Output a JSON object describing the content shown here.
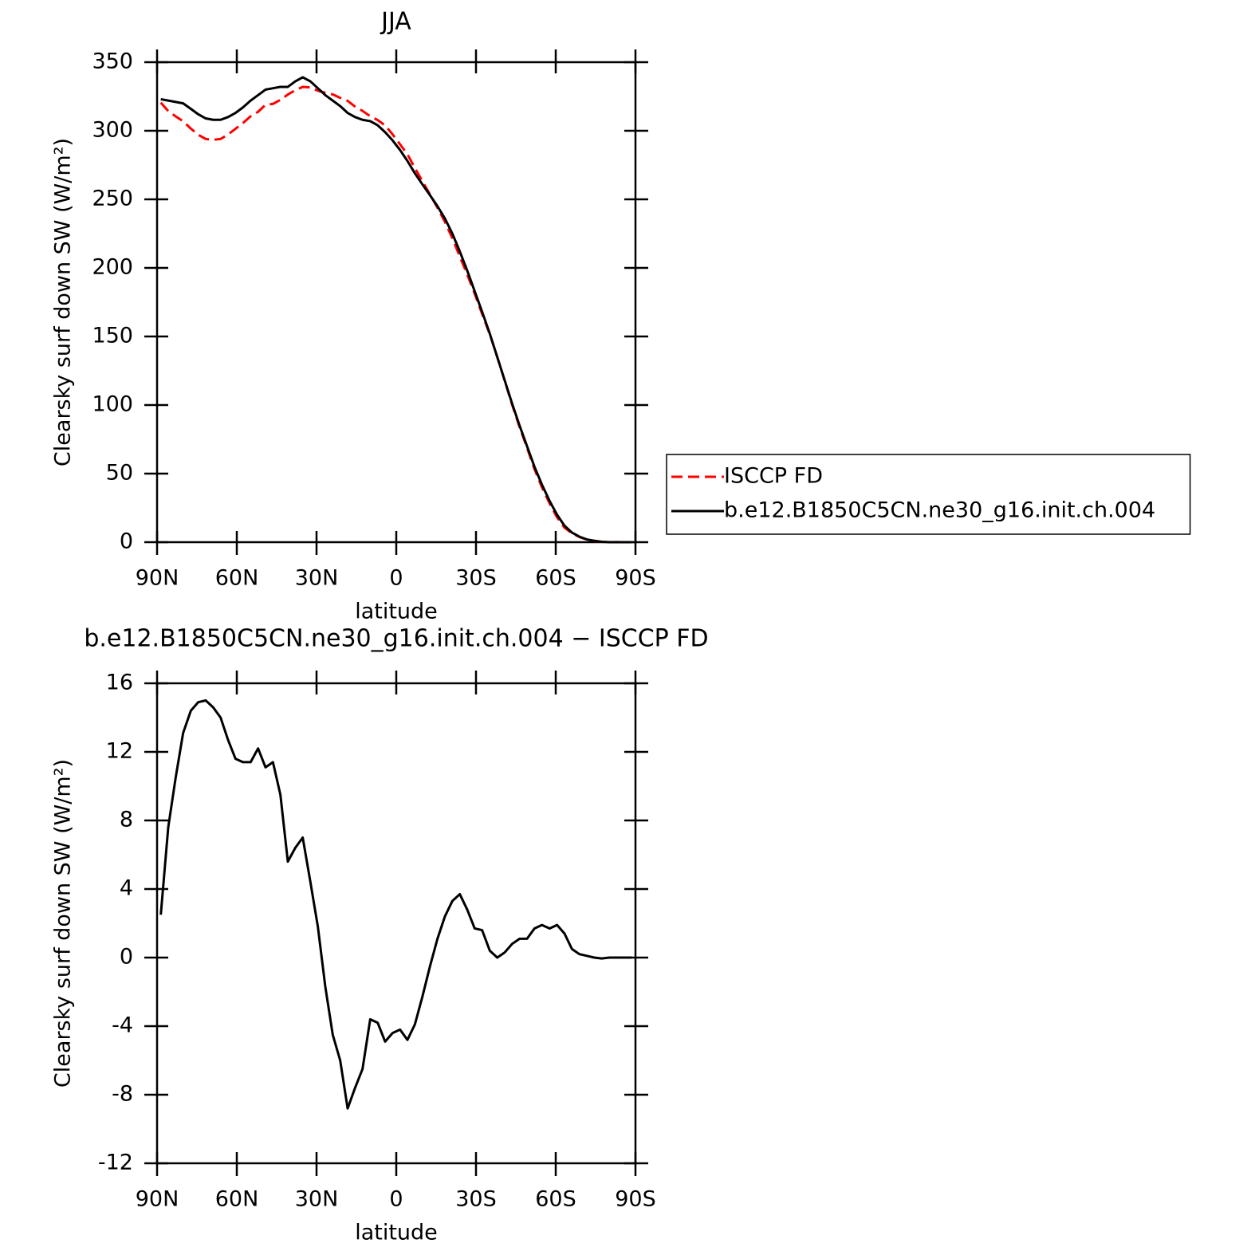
{
  "chart_data": [
    {
      "type": "line",
      "title": "JJA",
      "xlabel": "latitude",
      "ylabel": "Clearsky surf down SW (W/m²)",
      "x": [
        88.6,
        85.8,
        83.0,
        80.2,
        77.3,
        74.5,
        71.7,
        68.9,
        66.1,
        63.3,
        60.5,
        57.7,
        54.8,
        52.0,
        49.2,
        46.4,
        43.6,
        40.8,
        38.0,
        35.2,
        32.3,
        29.5,
        26.7,
        23.9,
        21.1,
        18.3,
        15.5,
        12.7,
        9.8,
        7.0,
        4.2,
        1.4,
        -1.4,
        -4.2,
        -7.0,
        -9.8,
        -12.7,
        -15.5,
        -18.3,
        -21.1,
        -23.9,
        -26.7,
        -29.5,
        -32.3,
        -35.2,
        -38.0,
        -40.8,
        -43.6,
        -46.4,
        -49.2,
        -52.0,
        -54.8,
        -57.7,
        -60.5,
        -63.3,
        -66.1,
        -68.9,
        -71.7,
        -74.5,
        -77.3,
        -80.2,
        -83.0,
        -85.8,
        -88.6
      ],
      "series": [
        {
          "name": "ISCCP FD",
          "color": "#ff0000",
          "style": "dashed",
          "values": [
            320.5,
            314.4,
            310.5,
            306.9,
            301.6,
            297.1,
            294.0,
            293.4,
            294.0,
            297.3,
            301.4,
            305.6,
            310.6,
            313.8,
            318.9,
            319.6,
            322.5,
            326.4,
            329.6,
            332.0,
            331.6,
            329.2,
            327.7,
            326.5,
            324.0,
            321.8,
            317.6,
            314.5,
            310.6,
            307.8,
            303.9,
            297.4,
            290.2,
            282.8,
            272.9,
            263.3,
            253.5,
            243.9,
            233.6,
            221.7,
            208.3,
            195.2,
            181.3,
            166.4,
            151.6,
            135.0,
            117.7,
            100.2,
            83.9,
            68.9,
            53.3,
            40.1,
            28.3,
            18.1,
            10.6,
            6.5,
            3.8,
            1.9,
            0.9,
            0.3,
            0,
            0.05,
            0,
            0
          ]
        },
        {
          "name": "b.e12.B1850C5CN.ne30_g16.init.ch.004",
          "color": "#000000",
          "style": "solid",
          "values": [
            323,
            322,
            321,
            320,
            316,
            312,
            309,
            308,
            308,
            310,
            313,
            317,
            322,
            326,
            330,
            331,
            332,
            332,
            336,
            339,
            336,
            331,
            326,
            322,
            318,
            313,
            310,
            308,
            307,
            304,
            299,
            293,
            286,
            278,
            269,
            261,
            253,
            245,
            236,
            225,
            212,
            198,
            183,
            168,
            152,
            135,
            118,
            101,
            85,
            70,
            55,
            42,
            30,
            20,
            12,
            7,
            4,
            2,
            1,
            0.3,
            0,
            0,
            0,
            0
          ]
        }
      ],
      "xlim": [
        90,
        -90
      ],
      "xticks": [
        {
          "value": 90,
          "label": "90N"
        },
        {
          "value": 60,
          "label": "60N"
        },
        {
          "value": 30,
          "label": "30N"
        },
        0,
        {
          "value": -30,
          "label": "30S"
        },
        {
          "value": -60,
          "label": "60S"
        },
        {
          "value": -90,
          "label": "90S"
        }
      ],
      "ylim": [
        0,
        350
      ],
      "yticks": [
        0,
        50,
        100,
        150,
        200,
        250,
        300,
        350
      ],
      "legend": "right"
    },
    {
      "type": "line",
      "title": "b.e12.B1850C5CN.ne30_g16.init.ch.004 − ISCCP FD",
      "xlabel": "latitude",
      "ylabel": "Clearsky surf down SW (W/m²)",
      "x": [
        88.6,
        85.8,
        83.0,
        80.2,
        77.3,
        74.5,
        71.7,
        68.9,
        66.1,
        63.3,
        60.5,
        57.7,
        54.8,
        52.0,
        49.2,
        46.4,
        43.6,
        40.8,
        38.0,
        35.2,
        32.3,
        29.5,
        26.7,
        23.9,
        21.1,
        18.3,
        15.5,
        12.7,
        9.8,
        7.0,
        4.2,
        1.4,
        -1.4,
        -4.2,
        -7.0,
        -9.8,
        -12.7,
        -15.5,
        -18.3,
        -21.1,
        -23.9,
        -26.7,
        -29.5,
        -32.3,
        -35.2,
        -38.0,
        -40.8,
        -43.6,
        -46.4,
        -49.2,
        -52.0,
        -54.8,
        -57.7,
        -60.5,
        -63.3,
        -66.1,
        -68.9,
        -71.7,
        -74.5,
        -77.3,
        -80.2,
        -83.0,
        -85.8,
        -88.6
      ],
      "series": [
        {
          "color": "#000000",
          "style": "solid",
          "values": [
            2.5,
            7.6,
            10.5,
            13.1,
            14.4,
            14.9,
            15.0,
            14.6,
            14.0,
            12.7,
            11.6,
            11.4,
            11.4,
            12.2,
            11.1,
            11.4,
            9.5,
            5.6,
            6.4,
            7.0,
            4.4,
            1.8,
            -1.7,
            -4.5,
            -6.0,
            -8.8,
            -7.6,
            -6.5,
            -3.6,
            -3.8,
            -4.9,
            -4.4,
            -4.2,
            -4.8,
            -3.9,
            -2.3,
            -0.5,
            1.1,
            2.4,
            3.3,
            3.7,
            2.8,
            1.7,
            1.6,
            0.4,
            0.0,
            0.3,
            0.8,
            1.1,
            1.1,
            1.7,
            1.9,
            1.7,
            1.9,
            1.4,
            0.5,
            0.2,
            0.1,
            0,
            -0.05,
            0,
            0,
            0,
            0
          ]
        }
      ],
      "xlim": [
        90,
        -90
      ],
      "xticks": [
        {
          "value": 90,
          "label": "90N"
        },
        {
          "value": 60,
          "label": "60N"
        },
        {
          "value": 30,
          "label": "30N"
        },
        0,
        {
          "value": -30,
          "label": "30S"
        },
        {
          "value": -60,
          "label": "60S"
        },
        {
          "value": -90,
          "label": "90S"
        }
      ],
      "ylim": [
        -12,
        16
      ],
      "yticks": [
        -12,
        -8,
        -4,
        0,
        4,
        8,
        12,
        16
      ]
    }
  ]
}
